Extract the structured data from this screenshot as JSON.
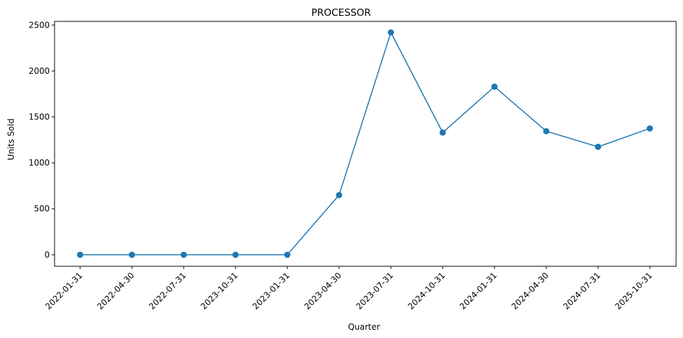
{
  "chart_data": {
    "type": "line",
    "title": "PROCESSOR",
    "xlabel": "Quarter",
    "ylabel": "Units Sold",
    "categories": [
      "2022-01-31",
      "2022-04-30",
      "2022-07-31",
      "2023-10-31",
      "2023-01-31",
      "2023-04-30",
      "2023-07-31",
      "2024-10-31",
      "2024-01-31",
      "2024-04-30",
      "2024-07-31",
      "2025-10-31"
    ],
    "values": [
      0,
      0,
      0,
      0,
      0,
      650,
      2420,
      1330,
      1830,
      1345,
      1175,
      1375
    ],
    "yticks": [
      0,
      500,
      1000,
      1500,
      2000,
      2500
    ],
    "ylim": [
      -125,
      2540
    ],
    "grid": false,
    "legend": false,
    "line_color": "#1f77b4",
    "marker": "circle"
  }
}
